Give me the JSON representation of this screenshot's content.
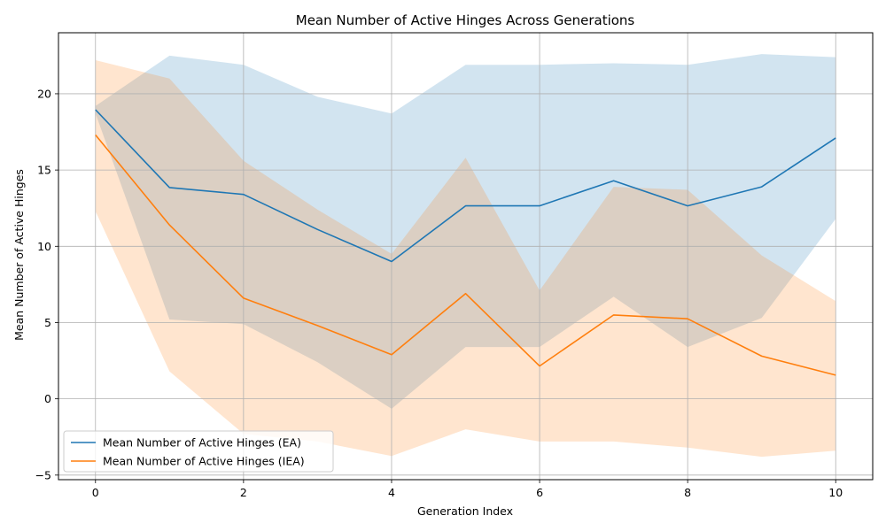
{
  "chart_data": {
    "type": "line",
    "title": "Mean Number of Active Hinges Across Generations",
    "xlabel": "Generation Index",
    "ylabel": "Mean Number of Active Hinges",
    "xlim": [
      -0.5,
      10.5
    ],
    "ylim": [
      -5.3,
      24
    ],
    "xticks": [
      0,
      2,
      4,
      6,
      8,
      10
    ],
    "yticks": [
      -5,
      0,
      5,
      10,
      15,
      20
    ],
    "grid": true,
    "legend_position": "lower-left",
    "x": [
      0,
      1,
      2,
      3,
      4,
      5,
      6,
      7,
      8,
      9,
      10
    ],
    "series": [
      {
        "name": "Mean Number of Active Hinges (EA)",
        "color": "#1f77b4",
        "band_color": "#b3d1e8",
        "values": [
          18.95,
          13.85,
          13.4,
          11.1,
          9.0,
          12.65,
          12.65,
          14.3,
          12.65,
          13.9,
          17.1
        ],
        "upper": [
          19.2,
          22.5,
          21.9,
          19.8,
          18.7,
          21.9,
          21.9,
          22.0,
          21.9,
          22.6,
          22.4
        ],
        "lower": [
          18.7,
          5.2,
          4.9,
          2.4,
          -0.65,
          3.4,
          3.4,
          6.7,
          3.4,
          5.3,
          11.8
        ]
      },
      {
        "name": "Mean Number of Active Hinges (IEA)",
        "color": "#ff7f0e",
        "band_color": "#ffd9b8",
        "values": [
          17.3,
          11.4,
          6.6,
          4.8,
          2.9,
          6.9,
          2.15,
          5.5,
          5.25,
          2.8,
          1.55
        ],
        "upper": [
          22.2,
          21.0,
          15.6,
          12.4,
          9.5,
          15.8,
          7.1,
          13.9,
          13.7,
          9.4,
          6.4
        ],
        "lower": [
          12.3,
          1.8,
          -2.3,
          -2.8,
          -3.75,
          -2.0,
          -2.8,
          -2.8,
          -3.2,
          -3.8,
          -3.4
        ]
      }
    ]
  }
}
